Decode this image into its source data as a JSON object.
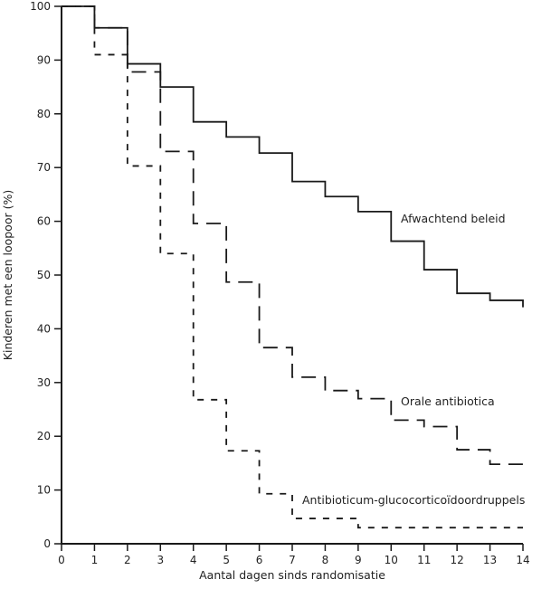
{
  "chart_data": {
    "type": "line",
    "subtype": "step",
    "title": "",
    "xlabel": "Aantal dagen sinds randomisatie",
    "ylabel": "Kinderen met een loopoor (%)",
    "xlim": [
      0,
      14
    ],
    "ylim": [
      0,
      100
    ],
    "x_ticks": [
      0,
      1,
      2,
      3,
      4,
      5,
      6,
      7,
      8,
      9,
      10,
      11,
      12,
      13,
      14
    ],
    "y_ticks": [
      0,
      10,
      20,
      30,
      40,
      50,
      60,
      70,
      80,
      90,
      100
    ],
    "grid": false,
    "legend": "inline labels",
    "series": [
      {
        "name": "Afwachtend beleid",
        "style": "solid",
        "x": [
          0,
          1,
          2,
          3,
          4,
          5,
          6,
          7,
          8,
          9,
          10,
          11,
          12,
          13,
          14
        ],
        "values": [
          100,
          96,
          89.3,
          85,
          78.5,
          75.7,
          72.7,
          67.4,
          64.6,
          61.8,
          56.3,
          51,
          46.6,
          45.3,
          44
        ]
      },
      {
        "name": "Orale antibiotica",
        "style": "long-dash",
        "x": [
          0,
          1,
          2,
          3,
          4,
          5,
          6,
          7,
          8,
          9,
          10,
          11,
          12,
          13,
          14
        ],
        "values": [
          100,
          96,
          87.8,
          73,
          59.6,
          48.7,
          36.5,
          31,
          28.5,
          27,
          23,
          21.8,
          17.5,
          14.8,
          14.8
        ]
      },
      {
        "name": "Antibioticum-glucocorticoïdoordruppels",
        "style": "short-dash",
        "x": [
          0,
          1,
          2,
          3,
          4,
          5,
          6,
          7,
          8,
          9,
          10,
          11,
          12,
          13,
          14
        ],
        "values": [
          100,
          91,
          70.3,
          54,
          26.8,
          17.3,
          9.3,
          4.7,
          4.7,
          3,
          3,
          3,
          3,
          3,
          3
        ]
      }
    ]
  }
}
